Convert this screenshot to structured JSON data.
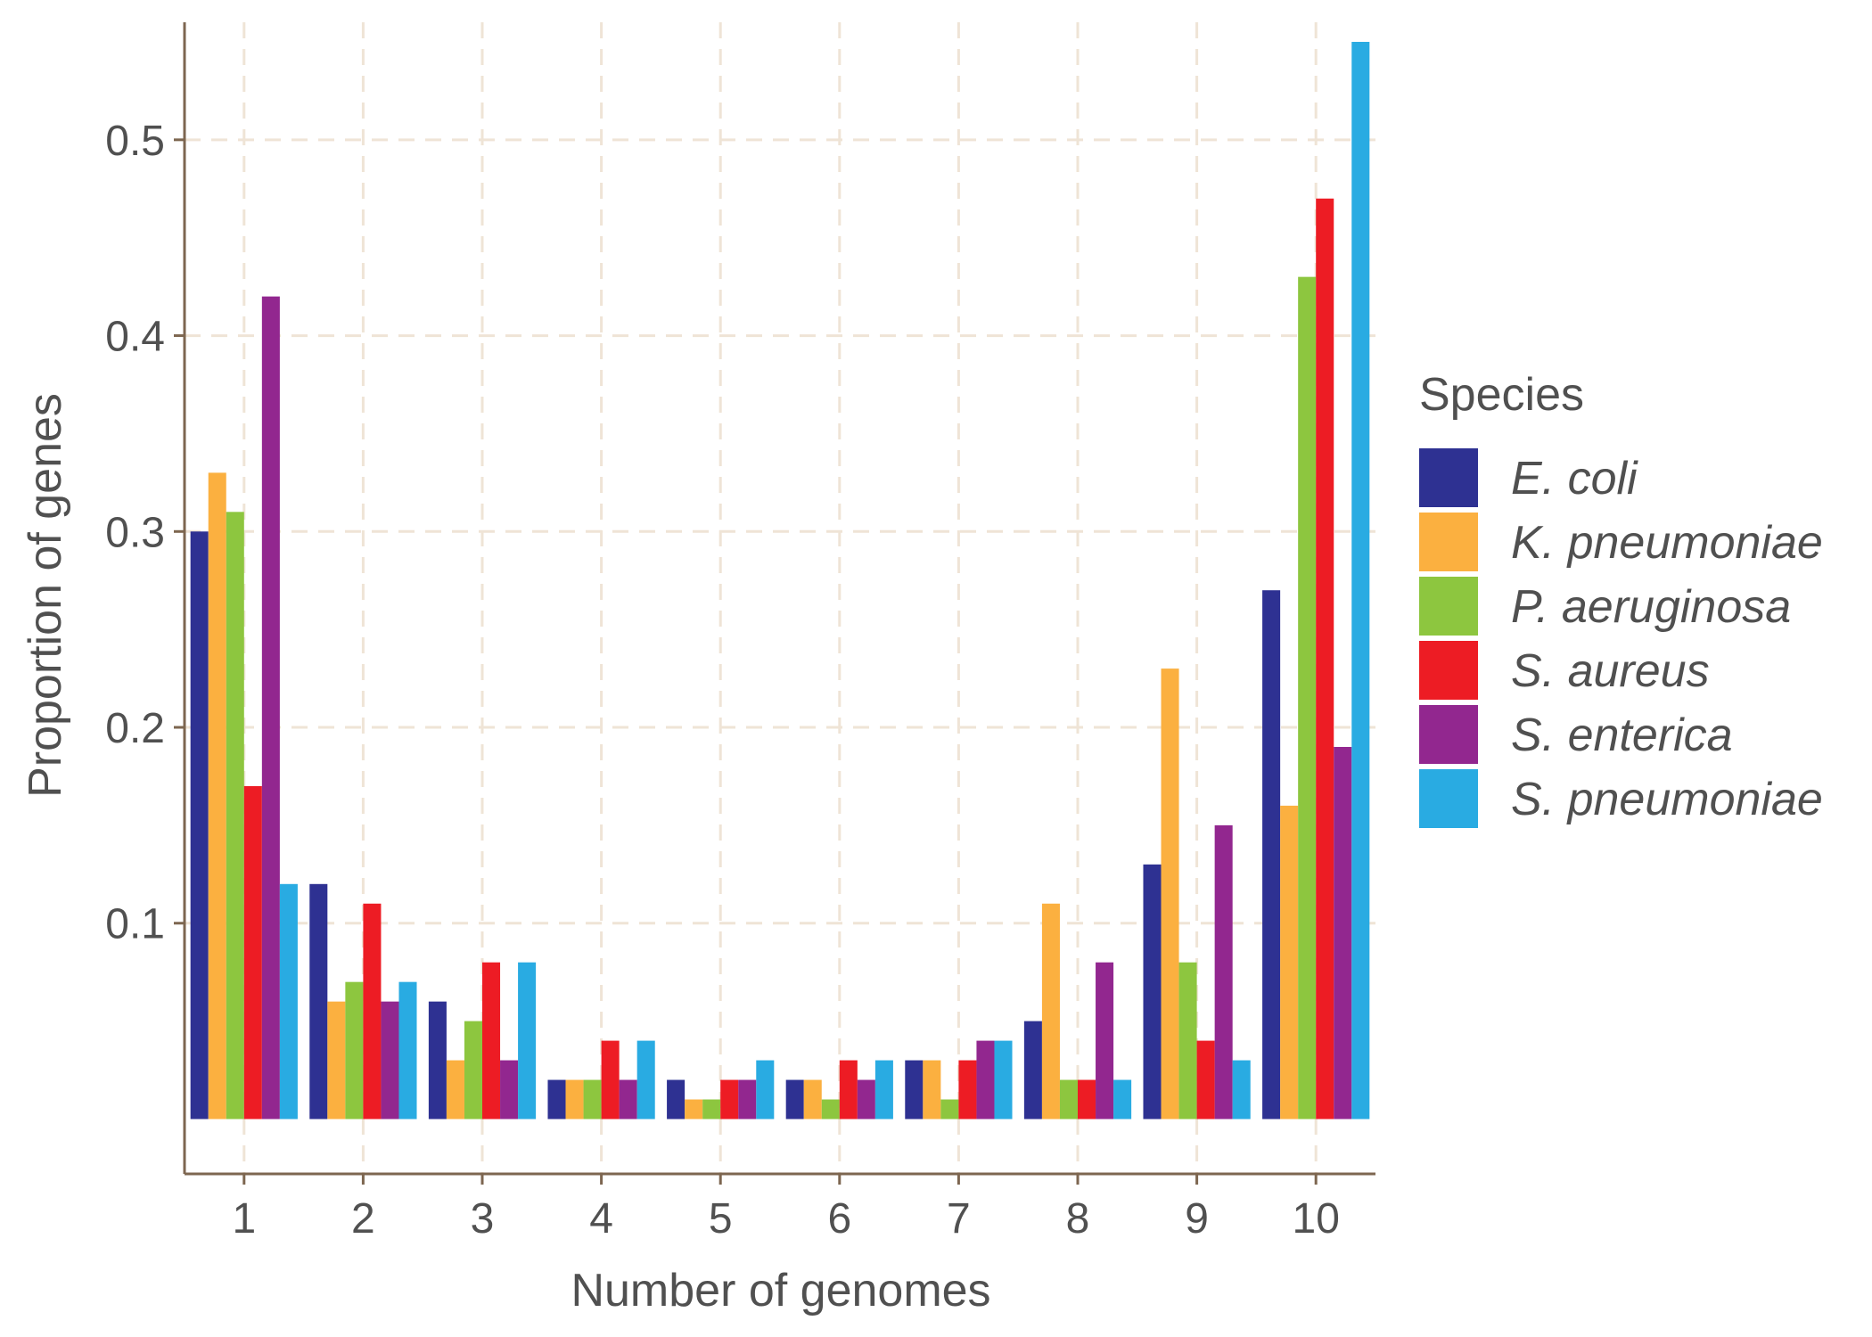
{
  "chart_data": {
    "type": "bar",
    "xlabel": "Number of genomes",
    "ylabel": "Proportion of genes",
    "categories": [
      "1",
      "2",
      "3",
      "4",
      "5",
      "6",
      "7",
      "8",
      "9",
      "10"
    ],
    "ylim": [
      -0.028,
      0.56
    ],
    "yticks": [
      "0.1",
      "0.2",
      "0.3",
      "0.4",
      "0.5"
    ],
    "grid": true,
    "legend": {
      "title": "Species",
      "position": "right"
    },
    "series": [
      {
        "name": "E. coli",
        "color": "#2e3192",
        "values": [
          0.3,
          0.12,
          0.06,
          0.02,
          0.02,
          0.02,
          0.03,
          0.05,
          0.13,
          0.27
        ]
      },
      {
        "name": "K. pneumoniae",
        "color": "#fbb040",
        "values": [
          0.33,
          0.06,
          0.03,
          0.02,
          0.01,
          0.02,
          0.03,
          0.11,
          0.23,
          0.16
        ]
      },
      {
        "name": "P. aeruginosa",
        "color": "#8dc63f",
        "values": [
          0.31,
          0.07,
          0.05,
          0.02,
          0.01,
          0.01,
          0.01,
          0.02,
          0.08,
          0.43
        ]
      },
      {
        "name": "S. aureus",
        "color": "#ed1c24",
        "values": [
          0.17,
          0.11,
          0.08,
          0.04,
          0.02,
          0.03,
          0.03,
          0.02,
          0.04,
          0.47
        ]
      },
      {
        "name": "S. enterica",
        "color": "#92278f",
        "values": [
          0.42,
          0.06,
          0.03,
          0.02,
          0.02,
          0.02,
          0.04,
          0.08,
          0.15,
          0.19
        ]
      },
      {
        "name": "S. pneumoniae",
        "color": "#29abe2",
        "values": [
          0.12,
          0.07,
          0.08,
          0.04,
          0.03,
          0.03,
          0.04,
          0.02,
          0.03,
          0.55
        ]
      }
    ]
  }
}
